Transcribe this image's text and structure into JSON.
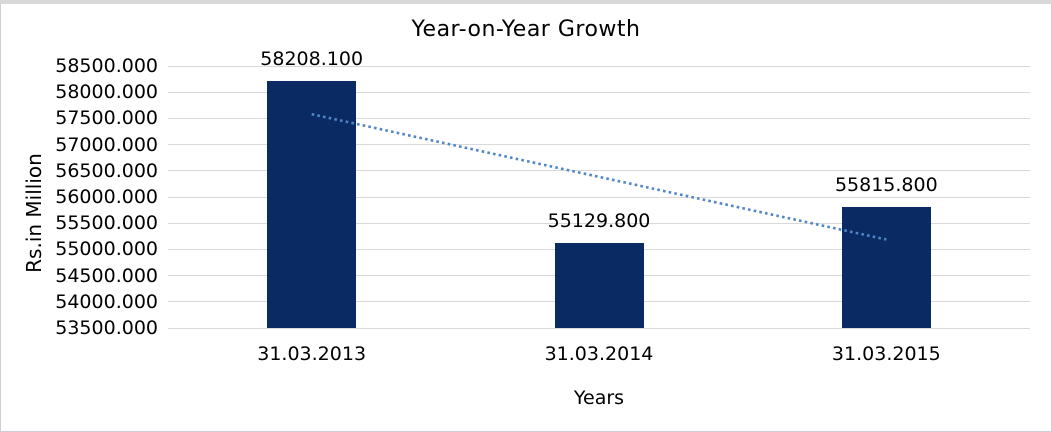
{
  "chart_data": {
    "type": "bar",
    "title": "Year-on-Year Growth",
    "xlabel": "Years",
    "ylabel": "Rs.in Million",
    "categories": [
      "31.03.2013",
      "31.03.2014",
      "31.03.2015"
    ],
    "values": [
      58208.1,
      55129.8,
      55815.8
    ],
    "bar_value_labels": [
      "58208.100",
      "55129.800",
      "55815.800"
    ],
    "ylim": [
      53500,
      58500
    ],
    "y_step": 500,
    "y_tick_labels": [
      "58500.000",
      "58000.000",
      "57500.000",
      "57000.000",
      "56500.000",
      "56000.000",
      "55500.000",
      "55000.000",
      "54500.000",
      "54000.000",
      "53500.000"
    ],
    "grid": true,
    "legend": false,
    "bar_color": "#0a2a63",
    "gridline_color": "#d9d9d9",
    "text_color": "#000000",
    "trendline": {
      "style": "dotted",
      "color": "#4e86c6",
      "start_value": 57580.7,
      "end_value": 55188.4
    }
  }
}
